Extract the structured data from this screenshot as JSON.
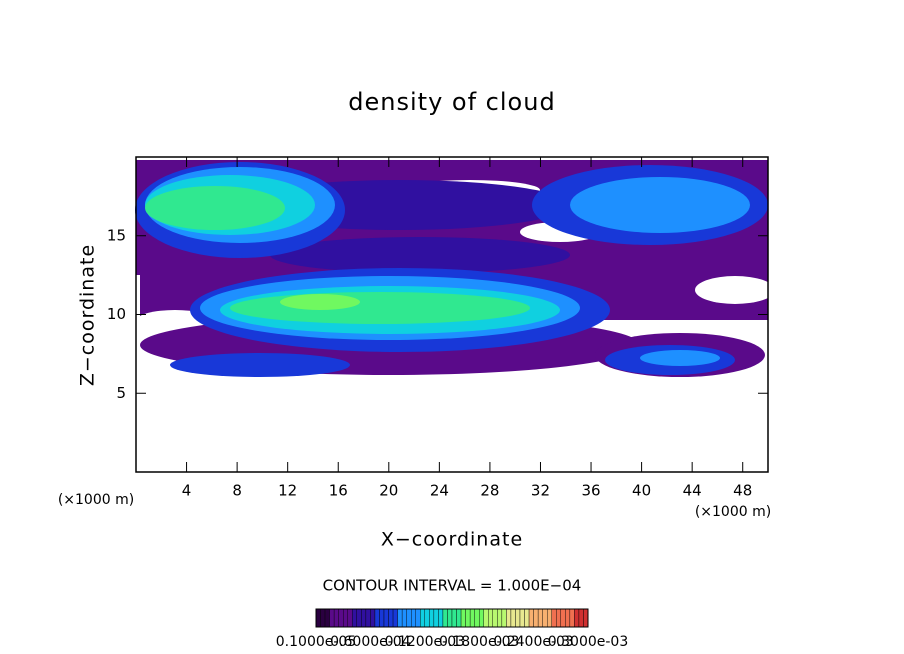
{
  "chart_data": {
    "type": "field",
    "title": "density of cloud",
    "x_label": "X−coordinate",
    "y_label": "Z−coordinate",
    "x_unit_left": "(×1000 m)",
    "x_unit_right": "(×1000 m)",
    "contour_interval": "CONTOUR INTERVAL = 1.000E−04",
    "xlim": [
      0,
      50
    ],
    "ylim": [
      0,
      20
    ],
    "xticks": [
      4,
      8,
      12,
      16,
      20,
      24,
      28,
      32,
      36,
      40,
      44,
      48
    ],
    "yticks": [
      5,
      10,
      15
    ],
    "colormap": [
      "#2a0040",
      "#5a0a8a",
      "#3010a0",
      "#1838d8",
      "#1e90ff",
      "#10d0e0",
      "#30e890",
      "#70f860",
      "#b8f870",
      "#e8e890",
      "#f8b070",
      "#f07050",
      "#d03030"
    ],
    "colorbar_labels": [
      "0.1000e-05",
      "0.6000e-04",
      "0.1200e-03",
      "0.1800e-03",
      "0.2400e-03",
      "0.3000e-03"
    ]
  }
}
